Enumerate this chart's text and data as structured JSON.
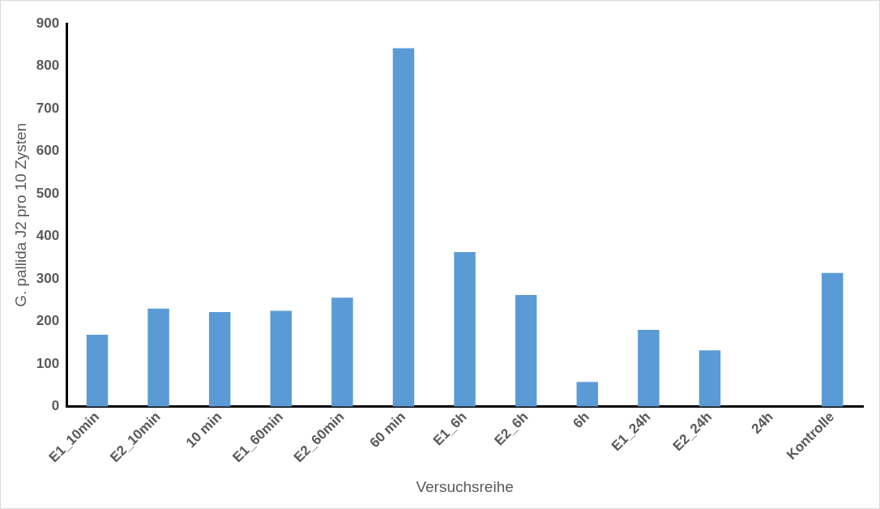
{
  "chart_data": {
    "type": "bar",
    "xlabel": "Versuchsreihe",
    "ylabel": "G. pallida J2 pro 10 Zysten",
    "categories": [
      "E1_10min",
      "E2_10min",
      "10 min",
      "E1_60min",
      "E2_60min",
      "60 min",
      "E1_6h",
      "E2_6h",
      "6h",
      "E1_24h",
      "E2_24h",
      "24h",
      "Kontrolle"
    ],
    "values": [
      169,
      230,
      222,
      225,
      256,
      842,
      363,
      262,
      58,
      180,
      132,
      0,
      314
    ],
    "color": "#5b9bd5",
    "ylim": [
      0,
      900
    ],
    "yticks": [
      0,
      100,
      200,
      300,
      400,
      500,
      600,
      700,
      800,
      900
    ],
    "grid": false,
    "legend": false
  }
}
